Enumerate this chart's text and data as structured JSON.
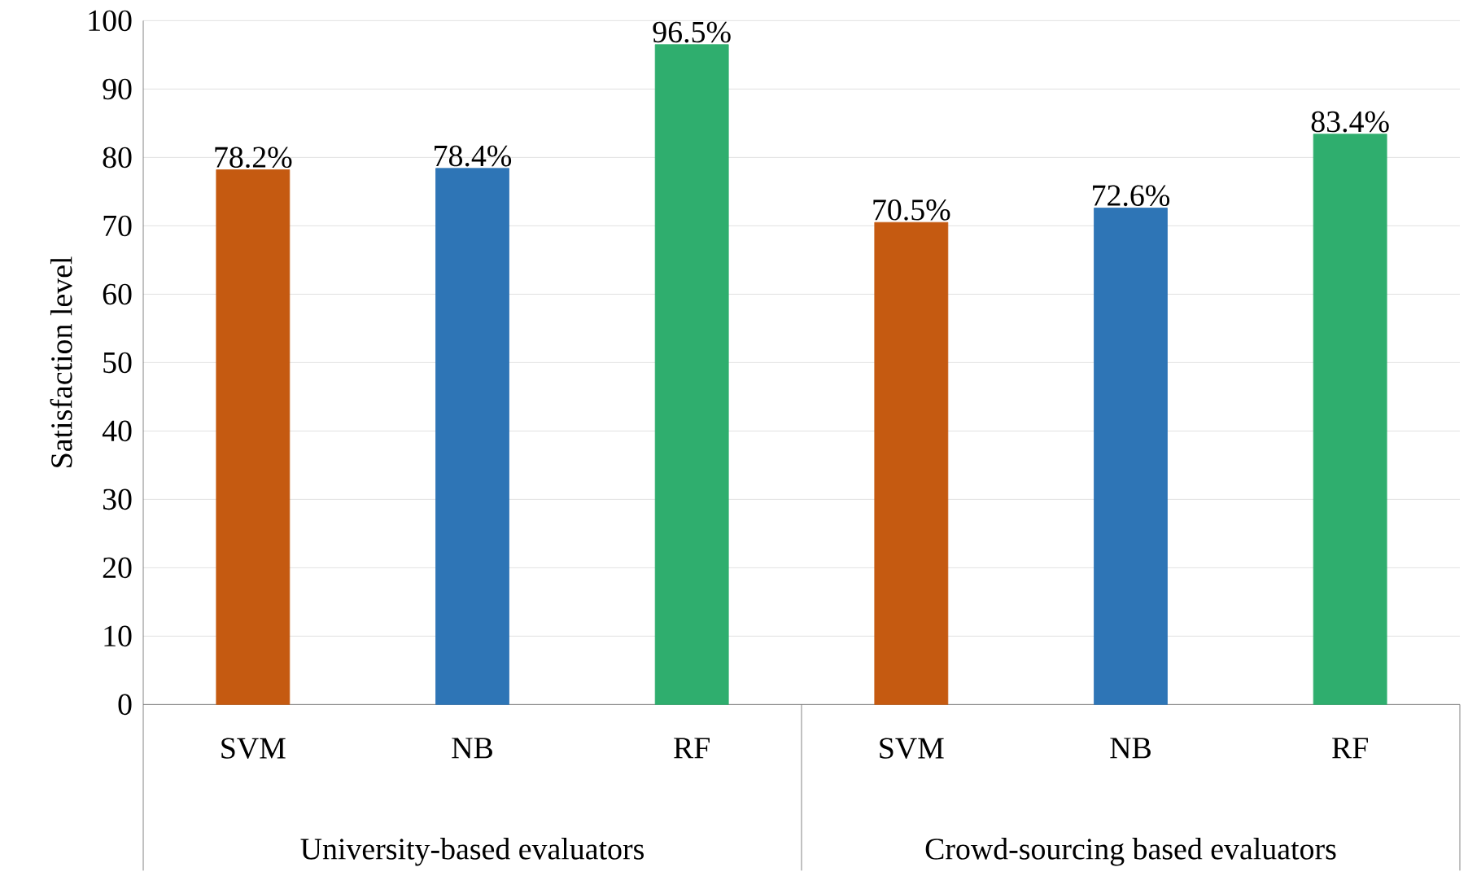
{
  "chart_data": {
    "type": "bar",
    "ylabel": "Satisfaction level",
    "categories": [
      "SVM",
      "NB",
      "RF",
      "SVM",
      "NB",
      "RF"
    ],
    "values": [
      78.2,
      78.4,
      96.5,
      70.5,
      72.6,
      83.4
    ],
    "value_labels": [
      "78.2%",
      "78.4%",
      "96.5%",
      "70.5%",
      "72.6%",
      "83.4%"
    ],
    "colors": [
      "#c55a11",
      "#2e75b6",
      "#2fae6e",
      "#c55a11",
      "#2e75b6",
      "#2fae6e"
    ],
    "ylim": [
      0,
      100
    ],
    "yticks": [
      0,
      10,
      20,
      30,
      40,
      50,
      60,
      70,
      80,
      90,
      100
    ],
    "grid": "y",
    "annotations": [
      "University-based evaluators",
      "Crowd-sourcing based evaluators"
    ]
  }
}
